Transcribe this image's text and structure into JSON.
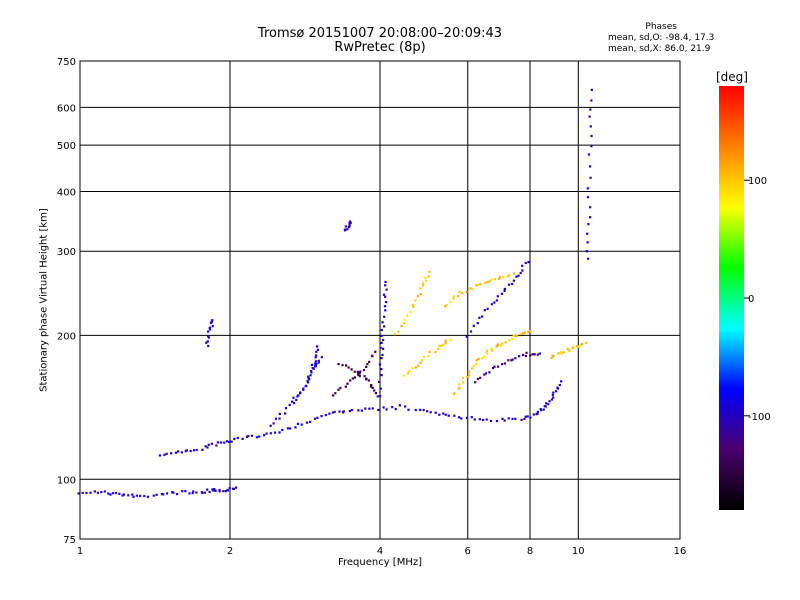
{
  "title_line1": "Tromsø 20151007 20:08:00–20:09:43",
  "title_line2": "RwPretec (8p)",
  "stats": {
    "heading": "Phases",
    "line_o": "mean, sd,O: -98.4, 17.3",
    "line_x": "mean, sd,X: 86.0, 21.9"
  },
  "colorbar": {
    "unit_label": "[deg]",
    "tick_labels": [
      "100",
      "0",
      "-100"
    ],
    "tick_values": [
      100,
      0,
      -100
    ],
    "range": [
      -180,
      180
    ],
    "colormap": [
      "#000000",
      "#4b006e",
      "#0000ff",
      "#00ffff",
      "#00ff00",
      "#ffff00",
      "#ff8000",
      "#ff0000"
    ]
  },
  "chart_data": {
    "type": "scatter",
    "title": "Tromsø 20151007 20:08:00–20:09:43",
    "subtitle": "RwPretec (8p)",
    "xlabel": "Frequency [MHz]",
    "ylabel": "Stationary phase Virtual Height [km]",
    "xscale": "log",
    "yscale": "log",
    "xlim": [
      1,
      16
    ],
    "ylim": [
      75,
      750
    ],
    "xticks": [
      1,
      2,
      4,
      6,
      8,
      10,
      16
    ],
    "yticks": [
      75,
      100,
      200,
      300,
      400,
      500,
      600,
      750
    ],
    "grid": true,
    "traces": [
      {
        "name": "",
        "phase": -100,
        "points": [
          [
            1.0,
            94
          ],
          [
            1.1,
            94
          ],
          [
            1.2,
            93
          ],
          [
            1.3,
            92
          ],
          [
            1.45,
            93
          ],
          [
            1.6,
            94
          ],
          [
            1.75,
            94
          ],
          [
            1.85,
            95
          ],
          [
            1.95,
            95
          ],
          [
            2.05,
            96
          ]
        ]
      },
      {
        "name": "",
        "phase": -100,
        "points": [
          [
            1.45,
            113
          ],
          [
            1.6,
            114
          ],
          [
            1.75,
            116
          ],
          [
            1.9,
            119
          ],
          [
            2.05,
            121
          ],
          [
            2.25,
            123
          ],
          [
            2.5,
            126
          ],
          [
            2.8,
            131
          ],
          [
            3.1,
            136
          ],
          [
            3.4,
            139
          ],
          [
            3.8,
            140
          ],
          [
            4.3,
            141
          ]
        ]
      },
      {
        "name": "",
        "phase": -100,
        "points": [
          [
            2.4,
            130
          ],
          [
            2.6,
            140
          ],
          [
            2.8,
            155
          ],
          [
            2.95,
            170
          ],
          [
            3.05,
            180
          ]
        ]
      },
      {
        "name": "",
        "phase": -100,
        "points": [
          [
            2.7,
            145
          ],
          [
            2.85,
            160
          ],
          [
            2.95,
            175
          ],
          [
            3.0,
            190
          ]
        ]
      },
      {
        "name": "",
        "phase": -140,
        "points": [
          [
            3.2,
            150
          ],
          [
            3.5,
            160
          ],
          [
            3.7,
            170
          ],
          [
            3.9,
            185
          ]
        ]
      },
      {
        "name": "",
        "phase": -140,
        "points": [
          [
            3.3,
            175
          ],
          [
            3.6,
            168
          ],
          [
            3.8,
            160
          ],
          [
            3.95,
            150
          ]
        ]
      },
      {
        "name": "",
        "phase": -100,
        "points": [
          [
            4.0,
            150
          ],
          [
            4.02,
            180
          ],
          [
            4.05,
            200
          ],
          [
            4.08,
            230
          ],
          [
            4.1,
            260
          ]
        ]
      },
      {
        "name": "",
        "phase": -100,
        "points": [
          [
            4.4,
            142
          ],
          [
            5.0,
            138
          ],
          [
            5.5,
            136
          ],
          [
            6.2,
            134
          ],
          [
            7.0,
            133
          ],
          [
            7.8,
            134
          ],
          [
            8.3,
            137
          ],
          [
            8.6,
            142
          ],
          [
            8.9,
            150
          ],
          [
            9.2,
            160
          ]
        ]
      },
      {
        "name": "",
        "phase": 100,
        "points": [
          [
            4.5,
            165
          ],
          [
            4.8,
            175
          ],
          [
            5.2,
            188
          ],
          [
            5.5,
            195
          ]
        ]
      },
      {
        "name": "",
        "phase": 100,
        "points": [
          [
            4.3,
            200
          ],
          [
            4.6,
            225
          ],
          [
            4.85,
            250
          ],
          [
            5.0,
            270
          ]
        ]
      },
      {
        "name": "",
        "phase": 100,
        "points": [
          [
            5.6,
            150
          ],
          [
            5.9,
            162
          ],
          [
            6.2,
            175
          ],
          [
            6.6,
            185
          ],
          [
            7.0,
            192
          ],
          [
            7.5,
            200
          ],
          [
            8.0,
            205
          ]
        ]
      },
      {
        "name": "",
        "phase": 100,
        "points": [
          [
            5.4,
            230
          ],
          [
            5.8,
            245
          ],
          [
            6.3,
            255
          ],
          [
            6.8,
            262
          ],
          [
            7.4,
            268
          ]
        ]
      },
      {
        "name": "",
        "phase": -100,
        "points": [
          [
            6.0,
            200
          ],
          [
            6.5,
            225
          ],
          [
            7.0,
            245
          ],
          [
            7.5,
            265
          ],
          [
            7.9,
            285
          ]
        ]
      },
      {
        "name": "",
        "phase": -120,
        "points": [
          [
            6.2,
            160
          ],
          [
            6.7,
            170
          ],
          [
            7.3,
            178
          ],
          [
            7.9,
            183
          ],
          [
            8.4,
            182
          ]
        ]
      },
      {
        "name": "",
        "phase": 100,
        "points": [
          [
            8.8,
            180
          ],
          [
            9.3,
            185
          ],
          [
            9.8,
            188
          ],
          [
            10.3,
            192
          ]
        ]
      },
      {
        "name": "",
        "phase": -100,
        "points": [
          [
            10.45,
            290
          ],
          [
            10.5,
            370
          ],
          [
            10.55,
            500
          ],
          [
            10.6,
            650
          ]
        ]
      },
      {
        "name": "",
        "phase": -100,
        "points": [
          [
            1.8,
            190
          ],
          [
            1.82,
            205
          ],
          [
            1.85,
            215
          ]
        ]
      },
      {
        "name": "",
        "phase": -100,
        "points": [
          [
            3.4,
            330
          ],
          [
            3.45,
            340
          ],
          [
            3.5,
            345
          ]
        ]
      }
    ]
  }
}
